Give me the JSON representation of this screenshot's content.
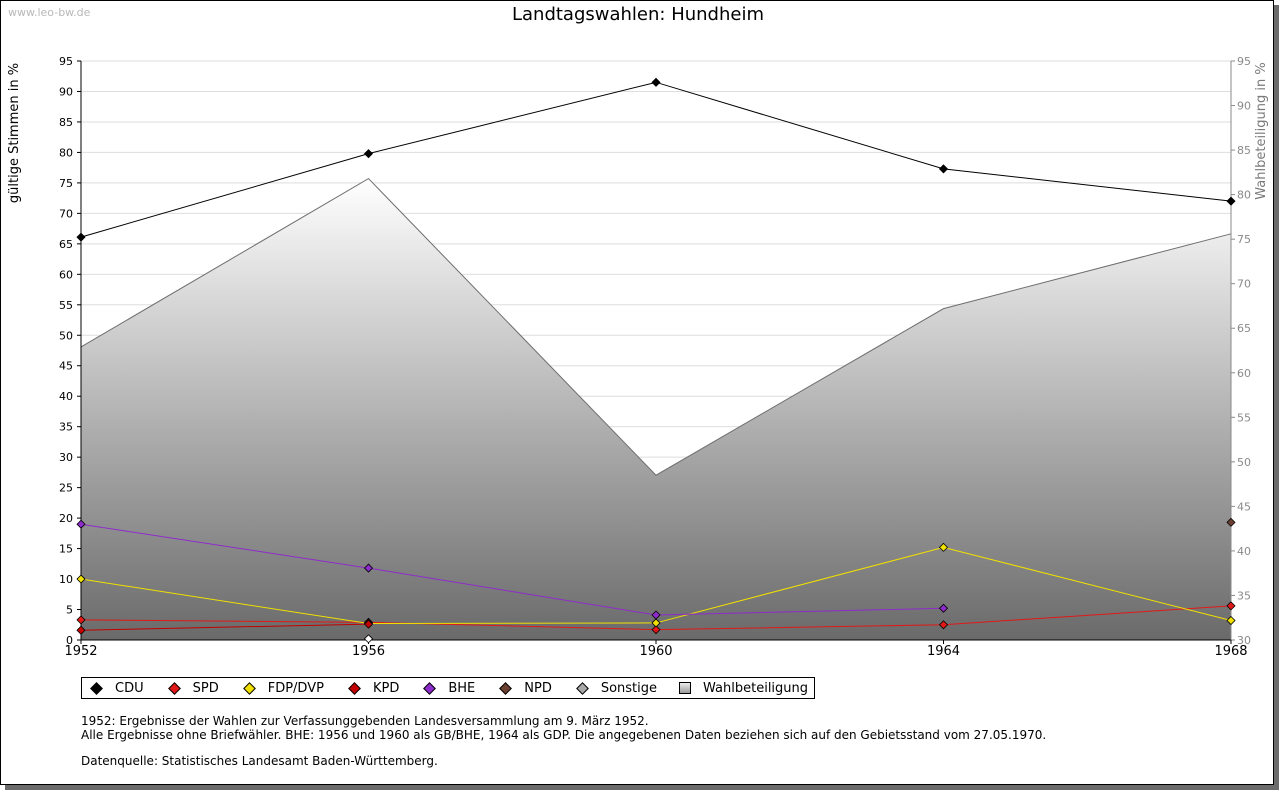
{
  "watermark": "www.leo-bw.de",
  "colors": {
    "CDU": "#000000",
    "SPD": "#e11818",
    "FDP/DVP": "#f0e000",
    "KPD": "#c40000",
    "BHE": "#8e2bcb",
    "NPD": "#6b4031",
    "Sonstige": "#a8a8a8",
    "Wahlbeteiligung": "#bbbbbb"
  },
  "legend": [
    {
      "label": "CDU",
      "color": "#000000"
    },
    {
      "label": "SPD",
      "color": "#e11818"
    },
    {
      "label": "FDP/DVP",
      "color": "#f0e000"
    },
    {
      "label": "KPD",
      "color": "#c40000"
    },
    {
      "label": "BHE",
      "color": "#8e2bcb"
    },
    {
      "label": "NPD",
      "color": "#6b4031"
    },
    {
      "label": "Sonstige",
      "color": "#a8a8a8"
    },
    {
      "label": "Wahlbeteiligung",
      "color": "#bbbbbb"
    }
  ],
  "notes": {
    "line1": "1952: Ergebnisse der Wahlen zur Verfassunggebenden Landesversammlung am 9. März 1952.",
    "line2": "Alle Ergebnisse ohne Briefwähler. BHE: 1956 und 1960 als GB/BHE, 1964 als GDP. Die angegebenen Daten beziehen sich auf den Gebietsstand vom 27.05.1970.",
    "line3": "Datenquelle: Statistisches Landesamt Baden-Württemberg."
  },
  "chart_data": {
    "type": "line",
    "title": "Landtagswahlen: Hundheim",
    "ylabel": "gültige Stimmen in %",
    "y2label": "Wahlbeteiligung in %",
    "categories": [
      "1952",
      "1956",
      "1960",
      "1964",
      "1968"
    ],
    "ylim": [
      0,
      95
    ],
    "y2lim": [
      30,
      95
    ],
    "yticks": [
      "0",
      "5",
      "10",
      "15",
      "20",
      "25",
      "30",
      "35",
      "40",
      "45",
      "50",
      "55",
      "60",
      "65",
      "70",
      "75",
      "80",
      "85",
      "90",
      "95"
    ],
    "y2ticks": [
      "30",
      "35",
      "40",
      "45",
      "50",
      "55",
      "60",
      "65",
      "70",
      "75",
      "80",
      "85",
      "90",
      "95"
    ],
    "grid": true,
    "legend_position": "bottom",
    "series": [
      {
        "name": "CDU",
        "values": [
          66.1,
          79.8,
          91.5,
          77.3,
          72.0
        ]
      },
      {
        "name": "SPD",
        "values": [
          3.3,
          2.9,
          1.7,
          2.5,
          5.6
        ]
      },
      {
        "name": "FDP/DVP",
        "values": [
          10.0,
          2.7,
          2.8,
          15.2,
          3.2
        ]
      },
      {
        "name": "KPD",
        "values": [
          1.6,
          2.6,
          null,
          null,
          null
        ]
      },
      {
        "name": "BHE",
        "values": [
          19.0,
          11.8,
          4.1,
          5.2,
          null
        ]
      },
      {
        "name": "NPD",
        "values": [
          null,
          null,
          null,
          null,
          19.3
        ]
      },
      {
        "name": "Sonstige",
        "values": [
          null,
          0.2,
          null,
          null,
          null
        ]
      }
    ],
    "area_series": {
      "name": "Wahlbeteiligung",
      "axis": "right",
      "values": [
        62.9,
        81.8,
        48.5,
        67.2,
        75.6
      ]
    }
  }
}
